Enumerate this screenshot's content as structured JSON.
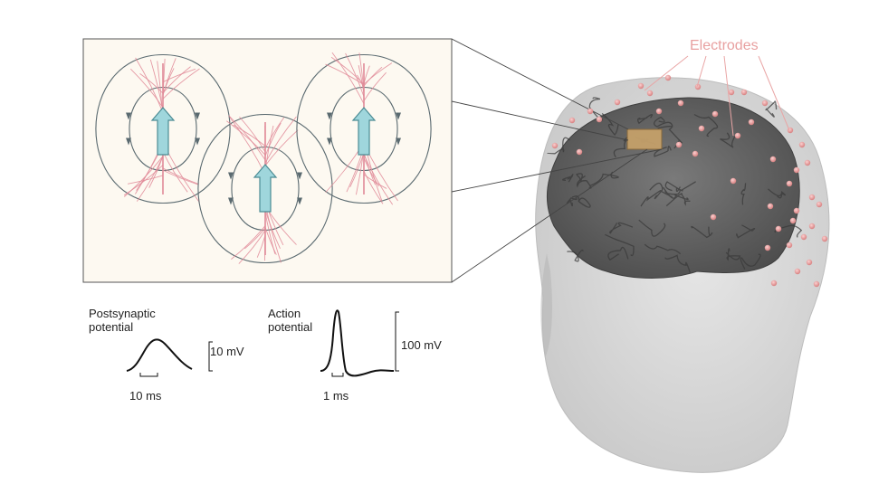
{
  "labels": {
    "electrodes": "Electrodes",
    "psp_title_line1": "Postsynaptic",
    "psp_title_line2": "potential",
    "psp_amplitude": "10 mV",
    "psp_time": "10 ms",
    "ap_title_line1": "Action",
    "ap_title_line2": "potential",
    "ap_amplitude": "100 mV",
    "ap_time": "1 ms"
  },
  "colors": {
    "neuron": "#e08a98",
    "field_line": "#5a6a70",
    "dipole_arrow": "#9fd6dc",
    "electrode": "#e9a5a5",
    "head": "#d9d9d9",
    "brain": "#6b6b6b",
    "highlight_patch": "#c4a06a",
    "inset_bg": "#fdf9f1"
  }
}
